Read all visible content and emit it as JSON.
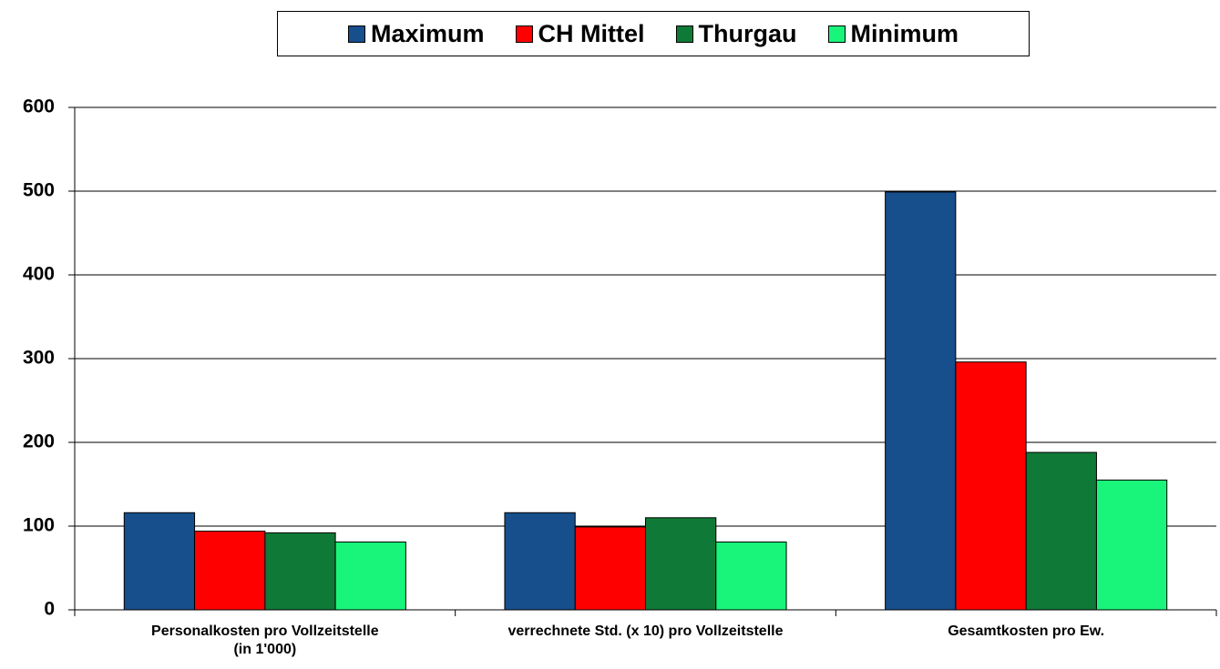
{
  "chart_data": {
    "type": "bar",
    "categories": [
      "Personalkosten pro Vollzeitstelle\n(in 1'000)",
      "verrechnete Std. (x 10) pro Vollzeitstelle",
      "Gesamtkosten pro Ew."
    ],
    "series": [
      {
        "name": "Maximum",
        "color": "#174e8c",
        "values": [
          116,
          116,
          499
        ]
      },
      {
        "name": "CH Mittel",
        "color": "#ff0000",
        "values": [
          94,
          99,
          296
        ]
      },
      {
        "name": "Thurgau",
        "color": "#0f7a37",
        "values": [
          92,
          110,
          188
        ]
      },
      {
        "name": "Minimum",
        "color": "#19f57a",
        "values": [
          81,
          81,
          155
        ]
      }
    ],
    "ylim": [
      0,
      600
    ],
    "yticks": [
      0,
      100,
      200,
      300,
      400,
      500,
      600
    ],
    "grid": true,
    "legend": "top"
  }
}
